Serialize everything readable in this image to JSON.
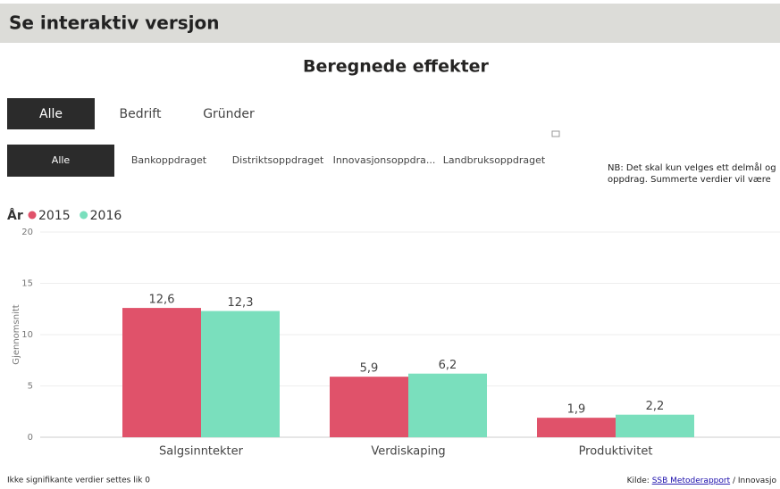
{
  "header": {
    "title": "Se interaktiv versjon"
  },
  "filters": {
    "row1": [
      "Alle",
      "Bedrift",
      "Gründer"
    ],
    "row2": [
      "Alle",
      "Bankoppdraget",
      "Distriktsoppdraget",
      "Innovasjonsoppdra...",
      "Landbruksoppdraget"
    ]
  },
  "note": "NB: Det skal kun velges ett delmål og oppdrag. Summerte verdier vil være",
  "chart_data": {
    "type": "bar",
    "title": "Beregnede effekter",
    "legend_title": "År",
    "y_label": "Gjennomsnitt",
    "categories": [
      "Salgsinntekter",
      "Verdiskaping",
      "Produktivitet"
    ],
    "series": [
      {
        "name": "2015",
        "color": "#e0526a",
        "values": [
          12.6,
          5.9,
          1.9
        ],
        "value_labels": [
          "12,6",
          "5,9",
          "1,9"
        ]
      },
      {
        "name": "2016",
        "color": "#7adfbd",
        "values": [
          12.3,
          6.2,
          2.2
        ],
        "value_labels": [
          "12,3",
          "6,2",
          "2,2"
        ]
      }
    ],
    "ylim": [
      0,
      20
    ],
    "yticks": [
      0,
      5,
      10,
      15,
      20
    ],
    "grid": true
  },
  "footer": {
    "left": "Ikke signifikante verdier settes lik 0",
    "source_prefix": "Kilde:",
    "source_link": "SSB Metoderapport",
    "source_suffix": "/ Innovasjo"
  }
}
